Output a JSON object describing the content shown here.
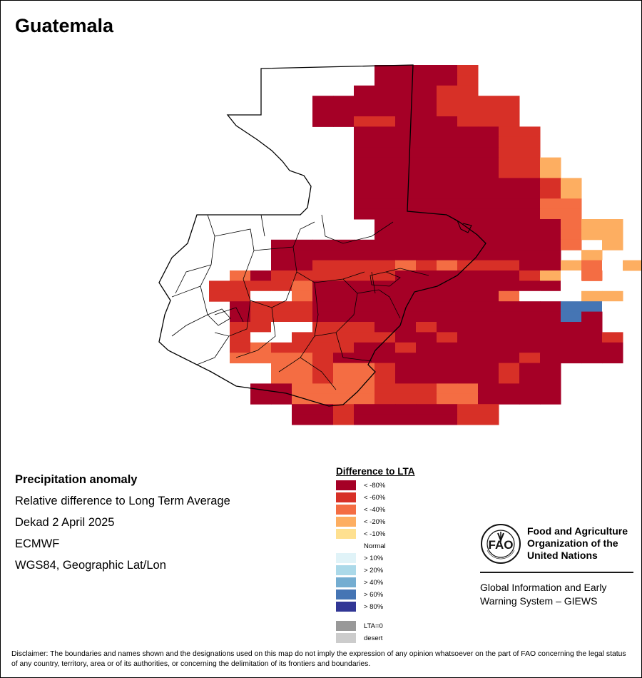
{
  "title": "Guatemala",
  "info": {
    "heading": "Precipitation anomaly",
    "line1": "Relative difference to Long Term Average",
    "line2": "Dekad 2 April 2025",
    "line3": "ECMWF",
    "line4": "WGS84, Geographic Lat/Lon"
  },
  "legend": {
    "title": "Difference to LTA",
    "items": [
      {
        "label": "< -80%",
        "color": "#a50026"
      },
      {
        "label": "< -60%",
        "color": "#d73027"
      },
      {
        "label": "< -40%",
        "color": "#f46d43"
      },
      {
        "label": "< -20%",
        "color": "#fdae61"
      },
      {
        "label": "< -10%",
        "color": "#fee090"
      },
      {
        "label": "Normal",
        "color": "#ffffff"
      },
      {
        "label": "> 10%",
        "color": "#e0f3f8"
      },
      {
        "label": "> 20%",
        "color": "#abd9e9"
      },
      {
        "label": "> 40%",
        "color": "#74add1"
      },
      {
        "label": "> 60%",
        "color": "#4575b4"
      },
      {
        "label": "> 80%",
        "color": "#313695"
      }
    ],
    "extra": [
      {
        "label": "LTA=0",
        "color": "#999999"
      },
      {
        "label": "desert",
        "color": "#cccccc"
      }
    ]
  },
  "fao": {
    "name_line1": "Food and Agriculture",
    "name_line2": "Organization of the",
    "name_line3": "United Nations",
    "giews_line1": "Global Information and Early",
    "giews_line2": "Warning System – GIEWS",
    "logo_text": "FIAT PANIS"
  },
  "disclaimer": "Disclaimer: The boundaries and names shown and the designations used on this map do not imply the expression of any opinion whatsoever on the part of FAO concerning the legal status of any country, territory, area or of its authorities, or concerning the delimitation of its frontiers and boundaries.",
  "grid": [
    "...........22223........",
    "...........22223........",
    "..........222233........",
    "........2222223333......",
    "........2222223333......",
    "........2233222333......",
    "..........222222233.....",
    "..........222222233.....",
    "..........222222233.....",
    "..........2222222335....",
    "..........2222222335....",
    "..........22222222235...",
    "..........22222222235...",
    "..........22222222244...",
    "..........22222222244...",
    "...........222222222455.",
    "...........222222222455.",
    "......222222222222224.5.",
    "......22222222222222.5..",
    "......2233334343332254N66",
    "....4233333322222235N4..",
    "...33334222222222222N.N..",
    "...33NN42222222224NN.66.",
    "....2333222222222222A8N..",
    "....2333222222222222A2...",
    "....33NN33322322222222...",
    "....3NN3333322322222223..",
    "....3433332232222222222..",
    "....4444322222222232222..",
    "......44344322222322.....",
    "......44344322222322.....",
    ".....224444333442222.....",
    ".....224444333442222.....",
    ".......2232222233........",
    ".......2232222233........"
  ],
  "grid_code_colors": {
    "1": "#a50026",
    "2": "#a50026",
    "3": "#d73027",
    "4": "#f46d43",
    "5": "#fdae61",
    "6": "#fdae61",
    "7": "#fee090",
    "8": "#4575b4",
    "A": "#4575b4",
    "N": "#ffffff"
  }
}
